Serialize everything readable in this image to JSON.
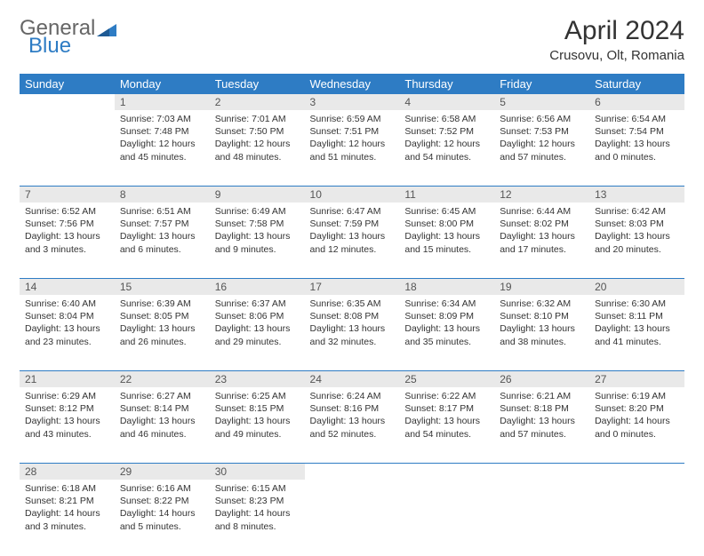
{
  "brand": {
    "general": "General",
    "blue": "Blue"
  },
  "title": "April 2024",
  "location": "Crusovu, Olt, Romania",
  "colors": {
    "header_bg": "#2e7cc4",
    "header_text": "#ffffff",
    "daynum_bg": "#e9e9e9",
    "rule": "#2e7cc4"
  },
  "day_headers": [
    "Sunday",
    "Monday",
    "Tuesday",
    "Wednesday",
    "Thursday",
    "Friday",
    "Saturday"
  ],
  "weeks": [
    [
      null,
      {
        "n": "1",
        "sunrise": "7:03 AM",
        "sunset": "7:48 PM",
        "dl_h": 12,
        "dl_m": 45
      },
      {
        "n": "2",
        "sunrise": "7:01 AM",
        "sunset": "7:50 PM",
        "dl_h": 12,
        "dl_m": 48
      },
      {
        "n": "3",
        "sunrise": "6:59 AM",
        "sunset": "7:51 PM",
        "dl_h": 12,
        "dl_m": 51
      },
      {
        "n": "4",
        "sunrise": "6:58 AM",
        "sunset": "7:52 PM",
        "dl_h": 12,
        "dl_m": 54
      },
      {
        "n": "5",
        "sunrise": "6:56 AM",
        "sunset": "7:53 PM",
        "dl_h": 12,
        "dl_m": 57
      },
      {
        "n": "6",
        "sunrise": "6:54 AM",
        "sunset": "7:54 PM",
        "dl_h": 13,
        "dl_m": 0
      }
    ],
    [
      {
        "n": "7",
        "sunrise": "6:52 AM",
        "sunset": "7:56 PM",
        "dl_h": 13,
        "dl_m": 3
      },
      {
        "n": "8",
        "sunrise": "6:51 AM",
        "sunset": "7:57 PM",
        "dl_h": 13,
        "dl_m": 6
      },
      {
        "n": "9",
        "sunrise": "6:49 AM",
        "sunset": "7:58 PM",
        "dl_h": 13,
        "dl_m": 9
      },
      {
        "n": "10",
        "sunrise": "6:47 AM",
        "sunset": "7:59 PM",
        "dl_h": 13,
        "dl_m": 12
      },
      {
        "n": "11",
        "sunrise": "6:45 AM",
        "sunset": "8:00 PM",
        "dl_h": 13,
        "dl_m": 15
      },
      {
        "n": "12",
        "sunrise": "6:44 AM",
        "sunset": "8:02 PM",
        "dl_h": 13,
        "dl_m": 17
      },
      {
        "n": "13",
        "sunrise": "6:42 AM",
        "sunset": "8:03 PM",
        "dl_h": 13,
        "dl_m": 20
      }
    ],
    [
      {
        "n": "14",
        "sunrise": "6:40 AM",
        "sunset": "8:04 PM",
        "dl_h": 13,
        "dl_m": 23
      },
      {
        "n": "15",
        "sunrise": "6:39 AM",
        "sunset": "8:05 PM",
        "dl_h": 13,
        "dl_m": 26
      },
      {
        "n": "16",
        "sunrise": "6:37 AM",
        "sunset": "8:06 PM",
        "dl_h": 13,
        "dl_m": 29
      },
      {
        "n": "17",
        "sunrise": "6:35 AM",
        "sunset": "8:08 PM",
        "dl_h": 13,
        "dl_m": 32
      },
      {
        "n": "18",
        "sunrise": "6:34 AM",
        "sunset": "8:09 PM",
        "dl_h": 13,
        "dl_m": 35
      },
      {
        "n": "19",
        "sunrise": "6:32 AM",
        "sunset": "8:10 PM",
        "dl_h": 13,
        "dl_m": 38
      },
      {
        "n": "20",
        "sunrise": "6:30 AM",
        "sunset": "8:11 PM",
        "dl_h": 13,
        "dl_m": 41
      }
    ],
    [
      {
        "n": "21",
        "sunrise": "6:29 AM",
        "sunset": "8:12 PM",
        "dl_h": 13,
        "dl_m": 43
      },
      {
        "n": "22",
        "sunrise": "6:27 AM",
        "sunset": "8:14 PM",
        "dl_h": 13,
        "dl_m": 46
      },
      {
        "n": "23",
        "sunrise": "6:25 AM",
        "sunset": "8:15 PM",
        "dl_h": 13,
        "dl_m": 49
      },
      {
        "n": "24",
        "sunrise": "6:24 AM",
        "sunset": "8:16 PM",
        "dl_h": 13,
        "dl_m": 52
      },
      {
        "n": "25",
        "sunrise": "6:22 AM",
        "sunset": "8:17 PM",
        "dl_h": 13,
        "dl_m": 54
      },
      {
        "n": "26",
        "sunrise": "6:21 AM",
        "sunset": "8:18 PM",
        "dl_h": 13,
        "dl_m": 57
      },
      {
        "n": "27",
        "sunrise": "6:19 AM",
        "sunset": "8:20 PM",
        "dl_h": 14,
        "dl_m": 0
      }
    ],
    [
      {
        "n": "28",
        "sunrise": "6:18 AM",
        "sunset": "8:21 PM",
        "dl_h": 14,
        "dl_m": 3
      },
      {
        "n": "29",
        "sunrise": "6:16 AM",
        "sunset": "8:22 PM",
        "dl_h": 14,
        "dl_m": 5
      },
      {
        "n": "30",
        "sunrise": "6:15 AM",
        "sunset": "8:23 PM",
        "dl_h": 14,
        "dl_m": 8
      },
      null,
      null,
      null,
      null
    ]
  ],
  "labels": {
    "sunrise": "Sunrise:",
    "sunset": "Sunset:",
    "daylight": "Daylight:",
    "hours": "hours",
    "and": "and",
    "minutes": "minutes."
  }
}
